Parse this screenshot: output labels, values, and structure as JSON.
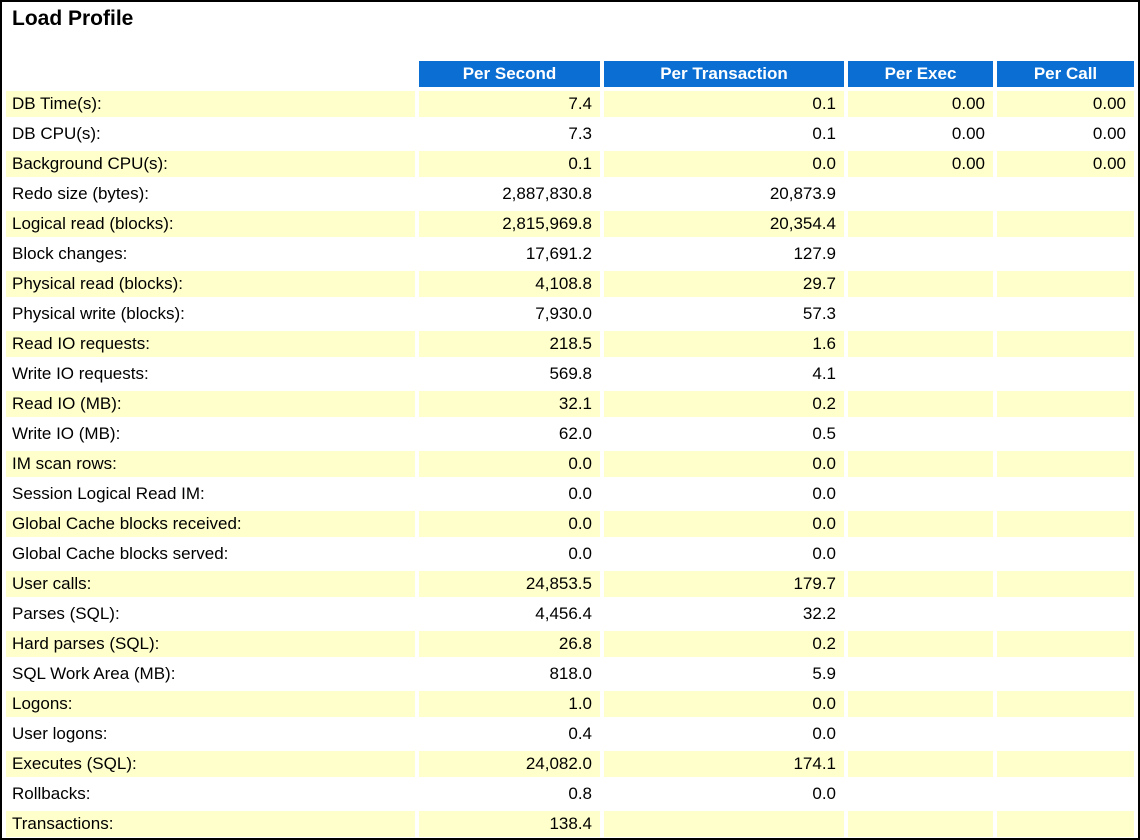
{
  "page": {
    "title": "Load Profile"
  },
  "colors": {
    "header_bg": "#0A6ED2",
    "header_text": "#FFFFFF",
    "row_alt_bg": "#FFFFCC",
    "row_bg": "#FFFFFF",
    "page_border": "#000000",
    "text": "#000000"
  },
  "table": {
    "columns": [
      {
        "key": "per_second",
        "label": "Per Second"
      },
      {
        "key": "per_transaction",
        "label": "Per Transaction"
      },
      {
        "key": "per_exec",
        "label": "Per Exec"
      },
      {
        "key": "per_call",
        "label": "Per Call"
      }
    ],
    "rows": [
      {
        "label": "DB Time(s):",
        "values": [
          "7.4",
          "0.1",
          "0.00",
          "0.00"
        ]
      },
      {
        "label": "DB CPU(s):",
        "values": [
          "7.3",
          "0.1",
          "0.00",
          "0.00"
        ]
      },
      {
        "label": "Background CPU(s):",
        "values": [
          "0.1",
          "0.0",
          "0.00",
          "0.00"
        ]
      },
      {
        "label": "Redo size (bytes):",
        "values": [
          "2,887,830.8",
          "20,873.9",
          "",
          ""
        ]
      },
      {
        "label": "Logical read (blocks):",
        "values": [
          "2,815,969.8",
          "20,354.4",
          "",
          ""
        ]
      },
      {
        "label": "Block changes:",
        "values": [
          "17,691.2",
          "127.9",
          "",
          ""
        ]
      },
      {
        "label": "Physical read (blocks):",
        "values": [
          "4,108.8",
          "29.7",
          "",
          ""
        ]
      },
      {
        "label": "Physical write (blocks):",
        "values": [
          "7,930.0",
          "57.3",
          "",
          ""
        ]
      },
      {
        "label": "Read IO requests:",
        "values": [
          "218.5",
          "1.6",
          "",
          ""
        ]
      },
      {
        "label": "Write IO requests:",
        "values": [
          "569.8",
          "4.1",
          "",
          ""
        ]
      },
      {
        "label": "Read IO (MB):",
        "values": [
          "32.1",
          "0.2",
          "",
          ""
        ]
      },
      {
        "label": "Write IO (MB):",
        "values": [
          "62.0",
          "0.5",
          "",
          ""
        ]
      },
      {
        "label": "IM scan rows:",
        "values": [
          "0.0",
          "0.0",
          "",
          ""
        ]
      },
      {
        "label": "Session Logical Read IM:",
        "values": [
          "0.0",
          "0.0",
          "",
          ""
        ]
      },
      {
        "label": "Global Cache blocks received:",
        "values": [
          "0.0",
          "0.0",
          "",
          ""
        ]
      },
      {
        "label": "Global Cache blocks served:",
        "values": [
          "0.0",
          "0.0",
          "",
          ""
        ]
      },
      {
        "label": "User calls:",
        "values": [
          "24,853.5",
          "179.7",
          "",
          ""
        ]
      },
      {
        "label": "Parses (SQL):",
        "values": [
          "4,456.4",
          "32.2",
          "",
          ""
        ]
      },
      {
        "label": "Hard parses (SQL):",
        "values": [
          "26.8",
          "0.2",
          "",
          ""
        ]
      },
      {
        "label": "SQL Work Area (MB):",
        "values": [
          "818.0",
          "5.9",
          "",
          ""
        ]
      },
      {
        "label": "Logons:",
        "values": [
          "1.0",
          "0.0",
          "",
          ""
        ]
      },
      {
        "label": "User logons:",
        "values": [
          "0.4",
          "0.0",
          "",
          ""
        ]
      },
      {
        "label": "Executes (SQL):",
        "values": [
          "24,082.0",
          "174.1",
          "",
          ""
        ]
      },
      {
        "label": "Rollbacks:",
        "values": [
          "0.8",
          "0.0",
          "",
          ""
        ]
      },
      {
        "label": "Transactions:",
        "values": [
          "138.4",
          "",
          "",
          ""
        ]
      }
    ]
  }
}
